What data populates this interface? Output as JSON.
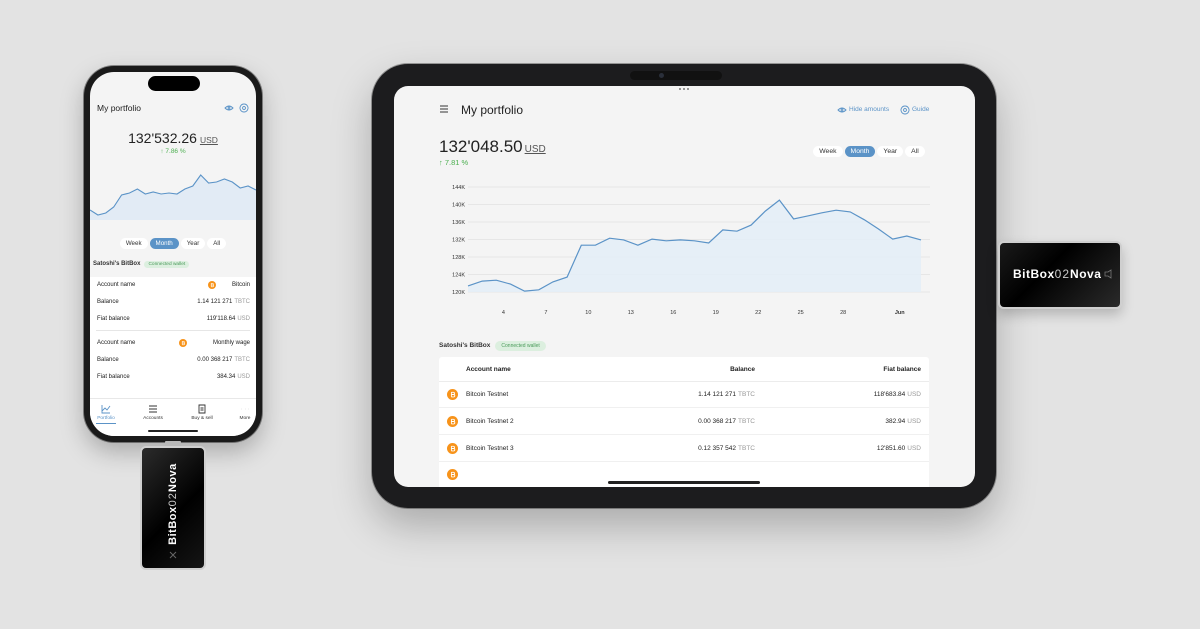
{
  "phone": {
    "title": "My portfolio",
    "total": "132'532.26",
    "currency": "USD",
    "change": "↑ 7.86 %",
    "chart": {
      "type": "line",
      "color": "#5b93c7",
      "ylim": [
        100000,
        150000
      ],
      "values": [
        108300,
        104200,
        105800,
        110800,
        120800,
        122500,
        125800,
        121700,
        123300,
        121700,
        122500,
        121700,
        125800,
        128300,
        137500,
        130800,
        131700,
        134200,
        131700,
        126700,
        128300,
        125000
      ]
    },
    "periods": [
      "Week",
      "Month",
      "Year",
      "All"
    ],
    "active_period": 1,
    "wallet": "Satoshi's BitBox",
    "wallet_status": "Connected wallet",
    "crypto_unit": "TBTC",
    "accounts": [
      {
        "name_label": "Account name",
        "name": "Bitcoin",
        "balance_label": "Balance",
        "balance": "1.14 121 271",
        "fiat_label": "Fiat balance",
        "fiat": "119'118.64"
      },
      {
        "name_label": "Account name",
        "name": "Monthly wage",
        "balance_label": "Balance",
        "balance": "0.00 368 217",
        "fiat_label": "Fiat balance",
        "fiat": "384.34"
      }
    ],
    "nav": [
      "Portfolio",
      "Accounts",
      "Buy & sell",
      "More"
    ],
    "active_nav": 0
  },
  "tablet": {
    "title": "My portfolio",
    "hide_amounts": "Hide amounts",
    "guide": "Guide",
    "total": "132'048.50",
    "currency": "USD",
    "change": "↑ 7.81 %",
    "periods": [
      "Week",
      "Month",
      "Year",
      "All"
    ],
    "active_period": 1,
    "chart": {
      "type": "line",
      "color": "#5b93c7",
      "grid": true,
      "xlim": [
        1.5,
        33.5
      ],
      "ylim": [
        120000,
        144000
      ],
      "x": [
        1.5,
        2.5,
        3.5,
        4.5,
        5.5,
        6.5,
        7.5,
        8.5,
        9.5,
        10.5,
        11.5,
        12.5,
        13.5,
        14.5,
        15.5,
        16.5,
        17.5,
        18.5,
        19.5,
        20.5,
        21.5,
        22.5,
        23.5,
        24.5,
        25.5,
        26.5,
        27.5,
        28.5,
        29.5,
        30.5,
        31.5,
        32.5,
        33.5
      ],
      "values": [
        121400,
        122500,
        122700,
        121800,
        120200,
        120500,
        122300,
        123400,
        130700,
        130700,
        132300,
        131900,
        130700,
        132100,
        131700,
        131900,
        131700,
        131200,
        134200,
        133900,
        135300,
        138500,
        141000,
        136700,
        137400,
        138100,
        138700,
        138300,
        136500,
        134400,
        132100,
        132800,
        131900
      ],
      "xticks": [
        4,
        7,
        10,
        13,
        16,
        19,
        22,
        25,
        28,
        {
          "value": 32,
          "label": "Jun"
        }
      ],
      "yticks": [
        {
          "value": 120000,
          "label": "120K"
        },
        {
          "value": 124000,
          "label": "124K"
        },
        {
          "value": 128000,
          "label": "128K"
        },
        {
          "value": 132000,
          "label": "132K"
        },
        {
          "value": 136000,
          "label": "136K"
        },
        {
          "value": 140000,
          "label": "140K"
        },
        {
          "value": 144000,
          "label": "144K"
        }
      ]
    },
    "wallet": "Satoshi's BitBox",
    "wallet_status": "Connected wallet",
    "crypto_unit": "TBTC",
    "table": {
      "header": [
        "Account name",
        "Balance",
        "Fiat balance"
      ],
      "rows": [
        [
          "Bitcoin Testnet",
          "1.14 121 271",
          "118'683.84"
        ],
        [
          "Bitcoin Testnet 2",
          "0.00 368 217",
          "382.94"
        ],
        [
          "Bitcoin Testnet 3",
          "0.12 357 542",
          "12'851.60"
        ]
      ]
    }
  },
  "device_name": [
    "BitBox",
    "02",
    "Nova"
  ]
}
